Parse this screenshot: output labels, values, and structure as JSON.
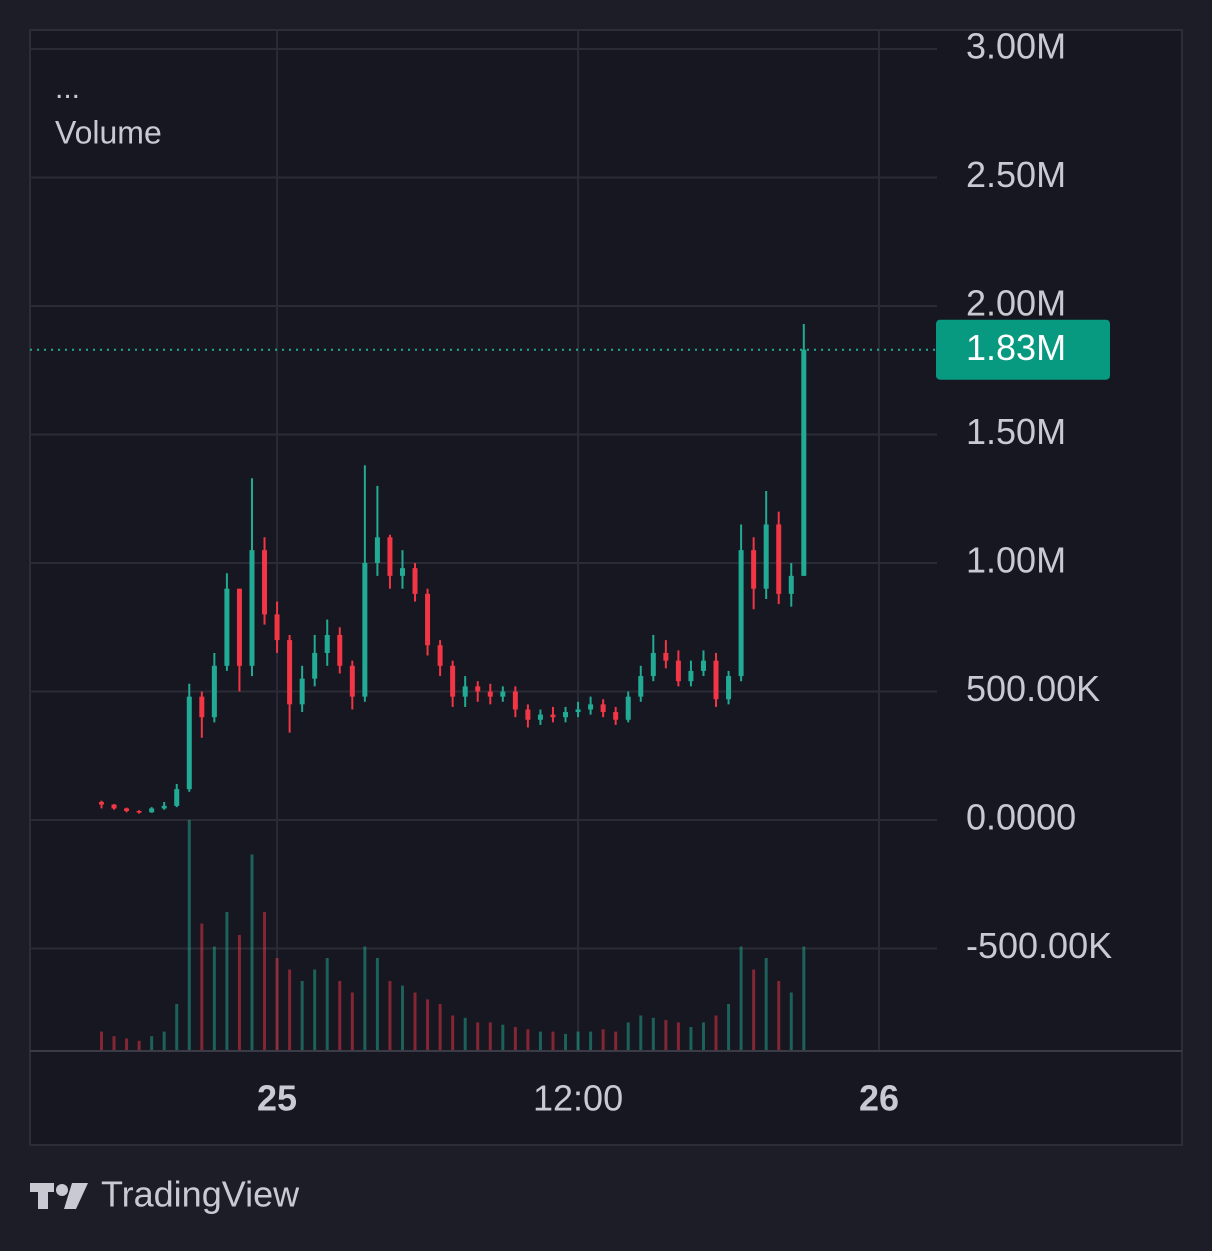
{
  "chart_data": {
    "type": "candlestick",
    "legend": {
      "menu": "...",
      "indicator": "Volume"
    },
    "brand": "TradingView",
    "up_color": "#22ab94",
    "down_color": "#f23645",
    "grid": true,
    "x": [
      -7,
      -6.5,
      -6,
      -5.5,
      -5,
      -4.5,
      -4,
      -3.5,
      -3,
      -2.5,
      -2,
      -1.5,
      -1,
      -0.5,
      0,
      0.5,
      1,
      1.5,
      2,
      2.5,
      3,
      3.5,
      4,
      4.5,
      5,
      5.5,
      6,
      6.5,
      7,
      7.5,
      8,
      8.5,
      9,
      9.5,
      10,
      10.5,
      11,
      11.5,
      12,
      12.5,
      13,
      13.5,
      14,
      14.5,
      15,
      15.5,
      16,
      16.5,
      17,
      17.5,
      18,
      18.5,
      19,
      19.5,
      20,
      20.5,
      21
    ],
    "open": [
      70000,
      60000,
      45000,
      35000,
      30000,
      45000,
      55000,
      120000,
      480000,
      400000,
      600000,
      900000,
      600000,
      1050000,
      800000,
      700000,
      450000,
      550000,
      650000,
      720000,
      600000,
      480000,
      1000000,
      1100000,
      950000,
      980000,
      880000,
      680000,
      600000,
      480000,
      520000,
      500000,
      480000,
      500000,
      430000,
      390000,
      410000,
      400000,
      420000,
      430000,
      450000,
      420000,
      390000,
      480000,
      560000,
      650000,
      620000,
      540000,
      580000,
      620000,
      470000,
      560000,
      1050000,
      900000,
      1150000,
      880000,
      950000
    ],
    "high": [
      75000,
      62000,
      48000,
      38000,
      50000,
      70000,
      140000,
      530000,
      500000,
      650000,
      960000,
      900000,
      1330000,
      1100000,
      850000,
      720000,
      600000,
      720000,
      780000,
      750000,
      620000,
      1380000,
      1300000,
      1110000,
      1050000,
      1000000,
      900000,
      700000,
      620000,
      560000,
      540000,
      530000,
      520000,
      520000,
      450000,
      430000,
      440000,
      440000,
      460000,
      480000,
      470000,
      440000,
      500000,
      600000,
      720000,
      700000,
      660000,
      620000,
      660000,
      650000,
      580000,
      1150000,
      1100000,
      1280000,
      1200000,
      1000000,
      1930000
    ],
    "low": [
      45000,
      40000,
      30000,
      25000,
      28000,
      40000,
      50000,
      110000,
      320000,
      380000,
      580000,
      500000,
      560000,
      760000,
      650000,
      340000,
      420000,
      520000,
      600000,
      570000,
      430000,
      460000,
      950000,
      900000,
      900000,
      850000,
      640000,
      560000,
      440000,
      440000,
      460000,
      450000,
      460000,
      400000,
      360000,
      370000,
      380000,
      380000,
      400000,
      410000,
      400000,
      370000,
      380000,
      460000,
      540000,
      590000,
      520000,
      520000,
      560000,
      440000,
      450000,
      540000,
      820000,
      860000,
      840000,
      830000,
      950000
    ],
    "close": [
      60000,
      45000,
      35000,
      30000,
      45000,
      55000,
      120000,
      480000,
      400000,
      600000,
      900000,
      600000,
      1050000,
      800000,
      700000,
      450000,
      550000,
      650000,
      720000,
      600000,
      480000,
      1000000,
      1100000,
      950000,
      980000,
      880000,
      680000,
      600000,
      480000,
      520000,
      500000,
      480000,
      500000,
      430000,
      390000,
      410000,
      400000,
      420000,
      430000,
      450000,
      420000,
      390000,
      480000,
      560000,
      650000,
      620000,
      540000,
      580000,
      620000,
      470000,
      560000,
      1050000,
      900000,
      1150000,
      880000,
      950000,
      1830000
    ],
    "volume": [
      8,
      6,
      5,
      4,
      6,
      8,
      20,
      100,
      55,
      45,
      60,
      50,
      85,
      60,
      40,
      35,
      30,
      35,
      40,
      30,
      25,
      45,
      40,
      30,
      28,
      25,
      22,
      20,
      15,
      14,
      12,
      12,
      11,
      10,
      9,
      8,
      8,
      7,
      8,
      8,
      9,
      8,
      12,
      15,
      14,
      13,
      12,
      10,
      12,
      15,
      20,
      45,
      35,
      40,
      30,
      25,
      45
    ],
    "last_price": {
      "value": 1830000,
      "label": "1.83M"
    },
    "xlim": [
      -9.85,
      26.31
    ],
    "xticks": [
      {
        "value": 0,
        "label": "25"
      },
      {
        "value": 12,
        "label": "12:00"
      },
      {
        "value": 24,
        "label": "26"
      }
    ],
    "ylim": [
      -895000,
      3074000
    ],
    "yticks": [
      {
        "value": 3000000,
        "label": "3.00M"
      },
      {
        "value": 2500000,
        "label": "2.50M"
      },
      {
        "value": 2000000,
        "label": "2.00M"
      },
      {
        "value": 1500000,
        "label": "1.50M"
      },
      {
        "value": 1000000,
        "label": "1.00M"
      },
      {
        "value": 500000,
        "label": "500.00K"
      },
      {
        "value": 0,
        "label": "0.0000"
      },
      {
        "value": -500000,
        "label": "-500.00K"
      }
    ]
  }
}
